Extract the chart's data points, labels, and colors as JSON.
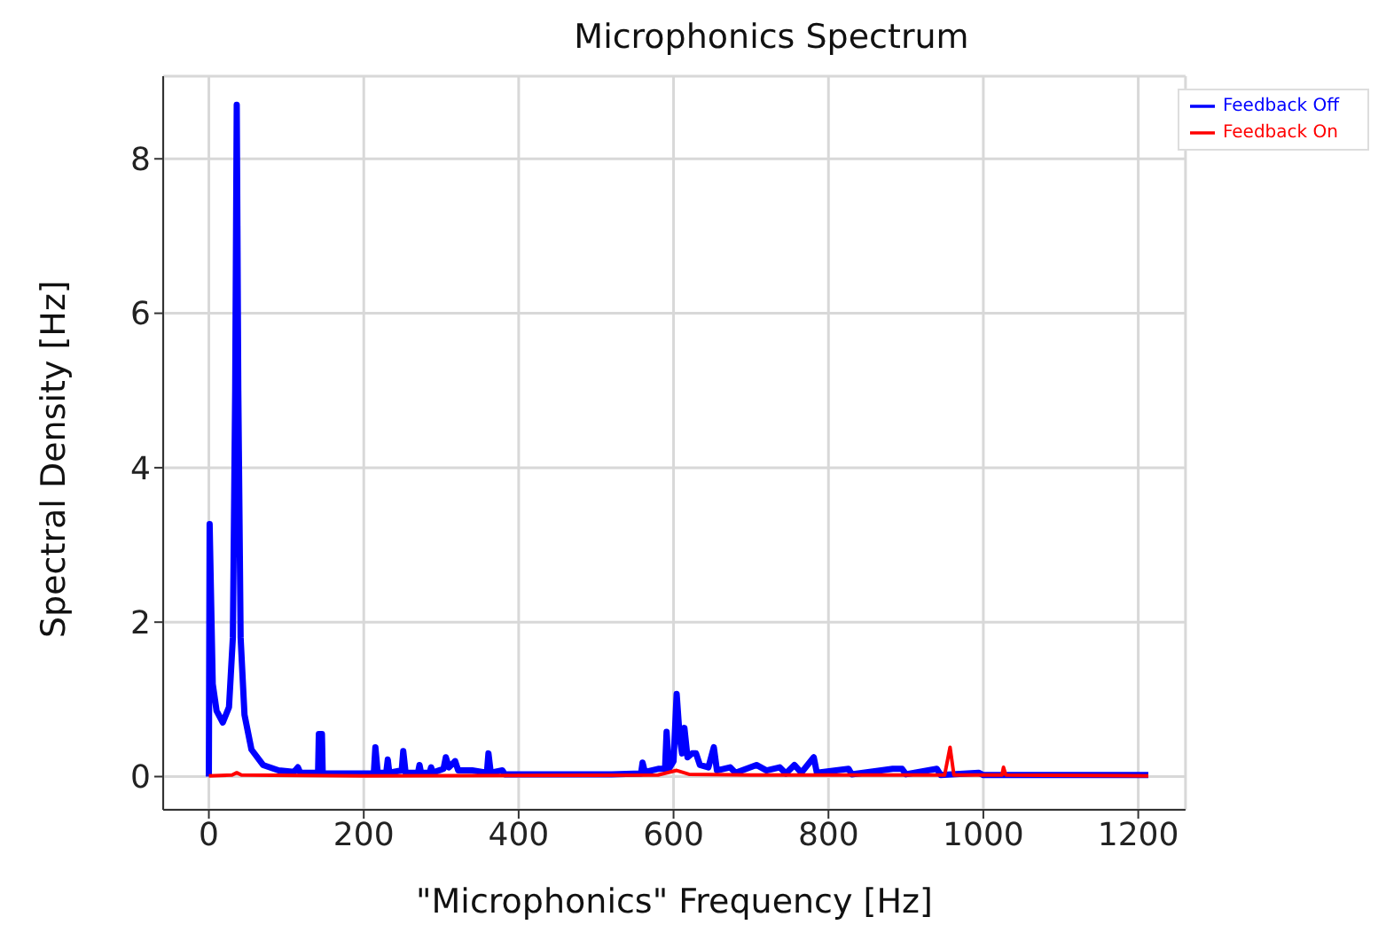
{
  "chart_data": {
    "type": "line",
    "title": "Microphonics Spectrum",
    "xlabel": "\"Microphonics\" Frequency [Hz]",
    "ylabel": "Spectral Density [Hz]",
    "xlim": [
      -59,
      1261
    ],
    "ylim": [
      -0.43,
      9.07
    ],
    "xticks": [
      0,
      200,
      400,
      600,
      800,
      1000,
      1200
    ],
    "yticks": [
      0,
      2,
      4,
      6,
      8
    ],
    "grid": true,
    "legend": "top right",
    "series": [
      {
        "name": "Feedback Off",
        "color": "#0000ff",
        "x": [
          0,
          1,
          5,
          10,
          18,
          26,
          31,
          34,
          36,
          38,
          41,
          46,
          55,
          70,
          90,
          110,
          115,
          118,
          141,
          142,
          146,
          147,
          213,
          215,
          218,
          229,
          231,
          233,
          249,
          251,
          254,
          270,
          272,
          274,
          285,
          287,
          289,
          303,
          306,
          310,
          318,
          322,
          340,
          359,
          361,
          364,
          379,
          382,
          450,
          520,
          558,
          560,
          563,
          580,
          589,
          591,
          594,
          600,
          604,
          608,
          611,
          614,
          618,
          624,
          629,
          634,
          645,
          652,
          656,
          673,
          680,
          707,
          720,
          737,
          745,
          756,
          765,
          781,
          785,
          826,
          830,
          883,
          895,
          900,
          940,
          945,
          994,
          1000,
          1100,
          1213
        ],
        "values": [
          0,
          3.27,
          1.2,
          0.85,
          0.7,
          0.9,
          1.8,
          5,
          8.7,
          5,
          1.8,
          0.8,
          0.35,
          0.15,
          0.08,
          0.06,
          0.12,
          0.05,
          0.05,
          0.55,
          0.55,
          0.04,
          0.04,
          0.38,
          0.05,
          0.05,
          0.22,
          0.05,
          0.08,
          0.33,
          0.05,
          0.05,
          0.15,
          0.05,
          0.05,
          0.12,
          0.05,
          0.1,
          0.25,
          0.12,
          0.2,
          0.08,
          0.08,
          0.05,
          0.3,
          0.05,
          0.08,
          0.03,
          0.03,
          0.03,
          0.04,
          0.18,
          0.06,
          0.1,
          0.1,
          0.58,
          0.1,
          0.2,
          1.07,
          0.5,
          0.3,
          0.63,
          0.25,
          0.3,
          0.3,
          0.15,
          0.12,
          0.38,
          0.08,
          0.12,
          0.05,
          0.15,
          0.08,
          0.12,
          0.04,
          0.15,
          0.05,
          0.25,
          0.05,
          0.1,
          0.03,
          0.1,
          0.1,
          0.03,
          0.1,
          0.02,
          0.05,
          0.02,
          0.02,
          0.02
        ]
      },
      {
        "name": "Feedback On",
        "color": "#ff0000",
        "x": [
          0,
          30,
          36,
          42,
          200,
          580,
          604,
          620,
          700,
          950,
          957,
          962,
          1024,
          1026,
          1029,
          1213
        ],
        "values": [
          0.01,
          0.02,
          0.05,
          0.02,
          0.01,
          0.02,
          0.08,
          0.03,
          0.02,
          0.02,
          0.38,
          0.02,
          0.02,
          0.12,
          0.02,
          0.01
        ]
      }
    ]
  }
}
